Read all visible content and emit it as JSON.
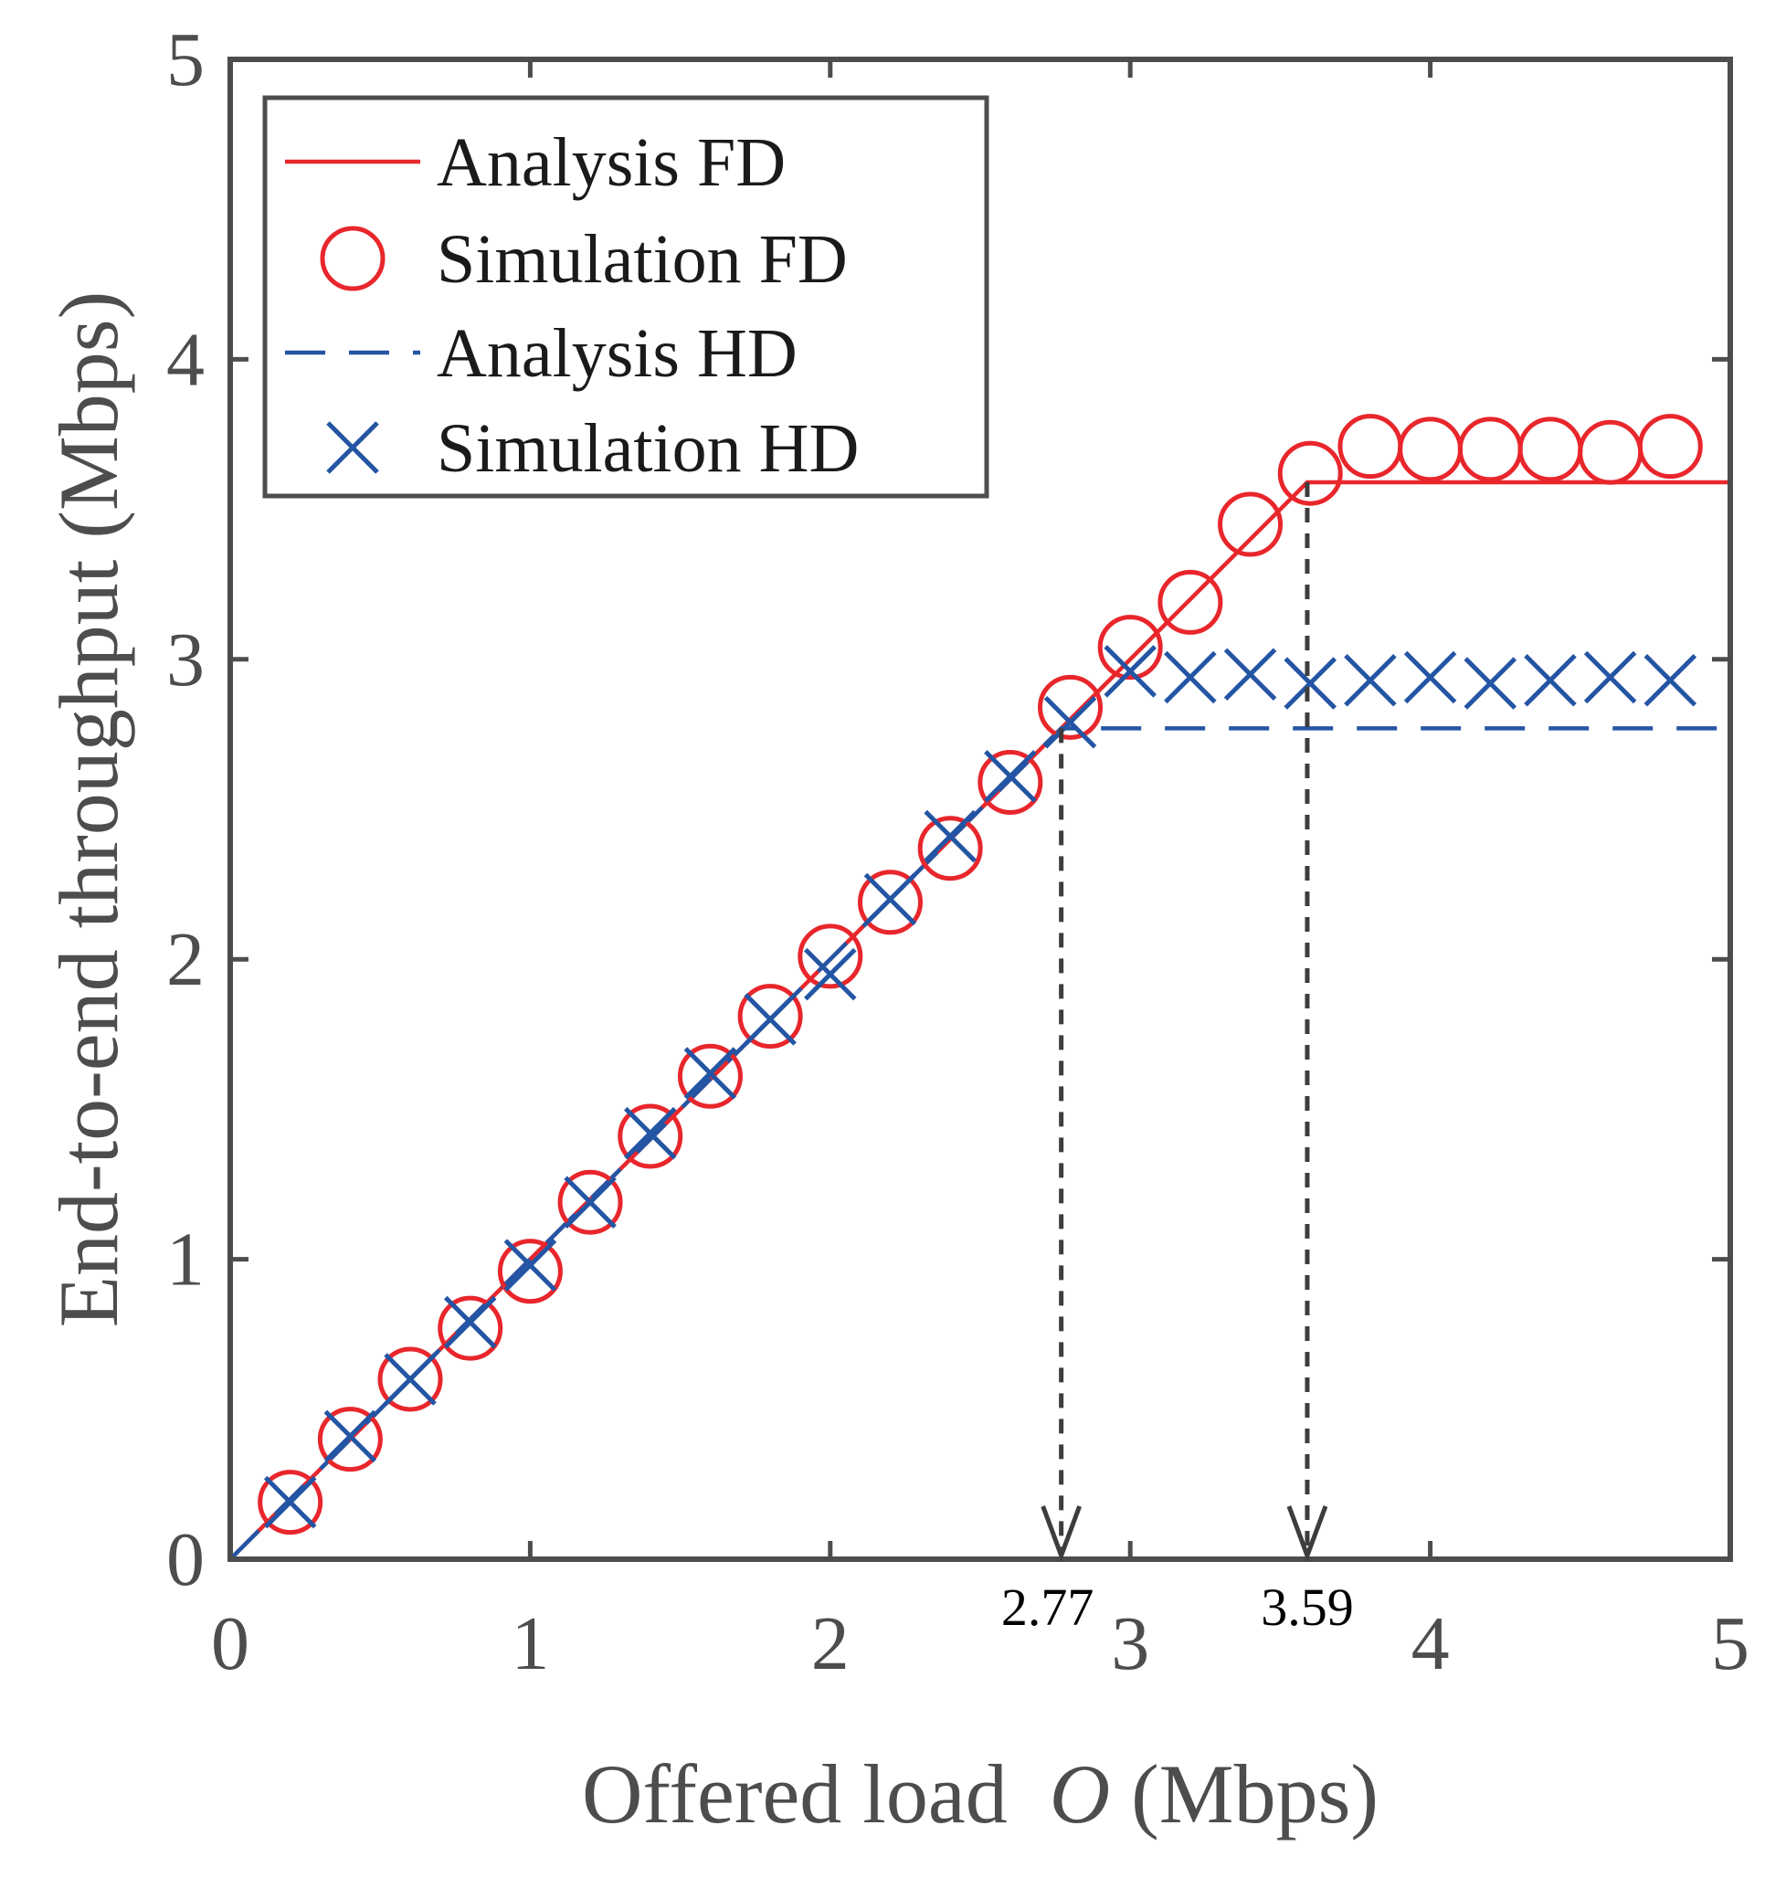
{
  "chart_data": {
    "type": "line",
    "xlabel_prefix": "Offered load",
    "xlabel_symbol": "O",
    "xlabel_unit": "(Mbps)",
    "ylabel": "End-to-end throughput (Mbps)",
    "xlim": [
      0,
      5
    ],
    "ylim": [
      0,
      5
    ],
    "xticks": [
      "0",
      "1",
      "2",
      "3",
      "4",
      "5"
    ],
    "yticks": [
      "0",
      "1",
      "2",
      "3",
      "4",
      "5"
    ],
    "legend_position": "top-left",
    "series": [
      {
        "name": "Analysis FD",
        "style": "solid-line",
        "color": "#e8262b",
        "x": [
          0,
          3.59,
          5
        ],
        "y": [
          0,
          3.59,
          3.59
        ]
      },
      {
        "name": "Simulation FD",
        "style": "circle-marker",
        "color": "#e8262b",
        "x": [
          0.2,
          0.4,
          0.6,
          0.8,
          1.0,
          1.2,
          1.4,
          1.6,
          1.8,
          2.0,
          2.2,
          2.4,
          2.6,
          2.8,
          3.0,
          3.2,
          3.4,
          3.6,
          3.8,
          4.0,
          4.2,
          4.4,
          4.6,
          4.8
        ],
        "y": [
          0.19,
          0.4,
          0.6,
          0.77,
          0.96,
          1.19,
          1.41,
          1.61,
          1.81,
          2.01,
          2.19,
          2.37,
          2.59,
          2.84,
          3.04,
          3.19,
          3.45,
          3.62,
          3.71,
          3.7,
          3.7,
          3.7,
          3.69,
          3.71
        ]
      },
      {
        "name": "Analysis HD",
        "style": "dashed-line",
        "color": "#2455a4",
        "x": [
          0,
          2.77,
          5
        ],
        "y": [
          0,
          2.77,
          2.77
        ]
      },
      {
        "name": "Simulation HD",
        "style": "x-marker",
        "color": "#2455a4",
        "x": [
          0.2,
          0.4,
          0.6,
          0.8,
          1.0,
          1.2,
          1.4,
          1.6,
          1.8,
          2.0,
          2.2,
          2.4,
          2.6,
          2.8,
          3.0,
          3.2,
          3.4,
          3.6,
          3.8,
          4.0,
          4.2,
          4.4,
          4.6,
          4.8
        ],
        "y": [
          0.19,
          0.41,
          0.6,
          0.79,
          0.98,
          1.19,
          1.42,
          1.62,
          1.8,
          1.95,
          2.2,
          2.41,
          2.61,
          2.79,
          2.96,
          2.94,
          2.95,
          2.92,
          2.93,
          2.94,
          2.92,
          2.93,
          2.94,
          2.93
        ]
      }
    ],
    "annotations": [
      {
        "label": "2.77",
        "x": 2.77,
        "y_from": 2.77
      },
      {
        "label": "3.59",
        "x": 3.59,
        "y_from": 3.59
      }
    ]
  }
}
